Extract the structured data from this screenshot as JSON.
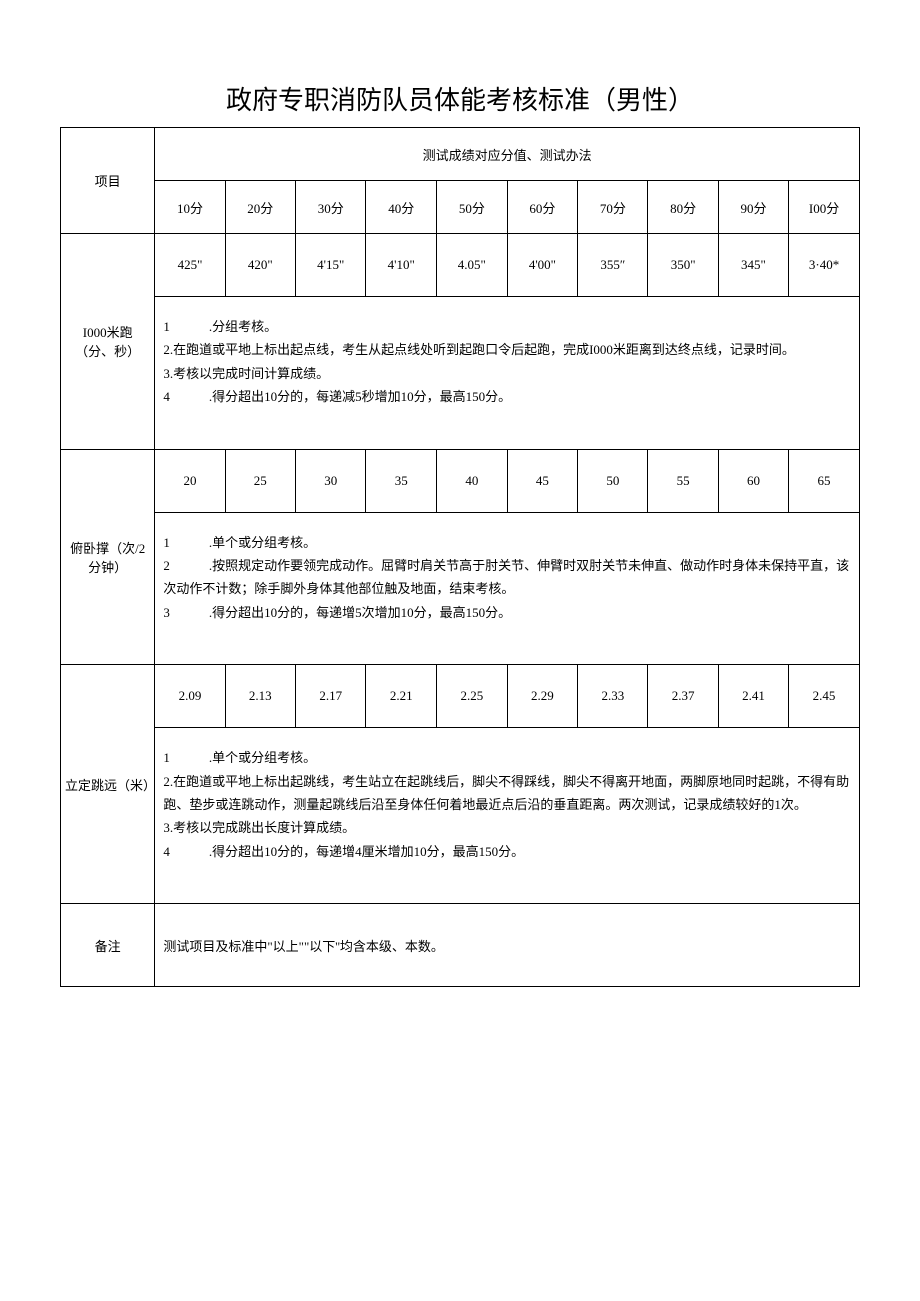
{
  "title": "政府专职消防队员体能考核标准（男性）",
  "table": {
    "header_main": "测试成绩对应分值、测试办法",
    "col_item": "项目",
    "score_headers": [
      "10分",
      "20分",
      "30分",
      "40分",
      "50分",
      "60分",
      "70分",
      "80分",
      "90分",
      "I00分"
    ],
    "row1": {
      "label": "I000米跑（分、秒）",
      "values": [
        "425\"",
        "420\"",
        "4'15\"",
        "4'10\"",
        "4.05\"",
        "4'00\"",
        "355″",
        "350\"",
        "345\"",
        "3·40*"
      ],
      "desc": "1　　　.分组考核。\n2.在跑道或平地上标出起点线，考生从起点线处听到起跑口令后起跑，完成I000米距离到达终点线，记录时间。\n3.考核以完成时间计算成绩。\n4　　　.得分超出10分的，每递减5秒增加10分，最高150分。"
    },
    "row2": {
      "label": "俯卧撑（次/2分钟）",
      "values": [
        "20",
        "25",
        "30",
        "35",
        "40",
        "45",
        "50",
        "55",
        "60",
        "65"
      ],
      "desc": "1　　　.单个或分组考核。\n2　　　.按照规定动作要领完成动作。屈臂时肩关节高于肘关节、伸臂时双肘关节未伸直、做动作时身体未保持平直，该次动作不计数；除手脚外身体其他部位触及地面，结束考核。\n3　　　.得分超出10分的，每递增5次增加10分，最高150分。"
    },
    "row3": {
      "label": "立定跳远（米）",
      "values": [
        "2.09",
        "2.13",
        "2.17",
        "2.21",
        "2.25",
        "2.29",
        "2.33",
        "2.37",
        "2.41",
        "2.45"
      ],
      "desc": "1　　　.单个或分组考核。\n2.在跑道或平地上标出起跳线，考生站立在起跳线后，脚尖不得踩线，脚尖不得离开地面，两脚原地同时起跳，不得有助跑、垫步或连跳动作，测量起跳线后沿至身体任何着地最近点后沿的垂直距离。两次测试，记录成绩较好的1次。\n3.考核以完成跳出长度计算成绩。\n4　　　.得分超出10分的，每递增4厘米增加10分，最高150分。"
    },
    "note": {
      "label": "备注",
      "text": "测试项目及标准中\"以上\"\"以下''均含本级、本数。"
    }
  }
}
